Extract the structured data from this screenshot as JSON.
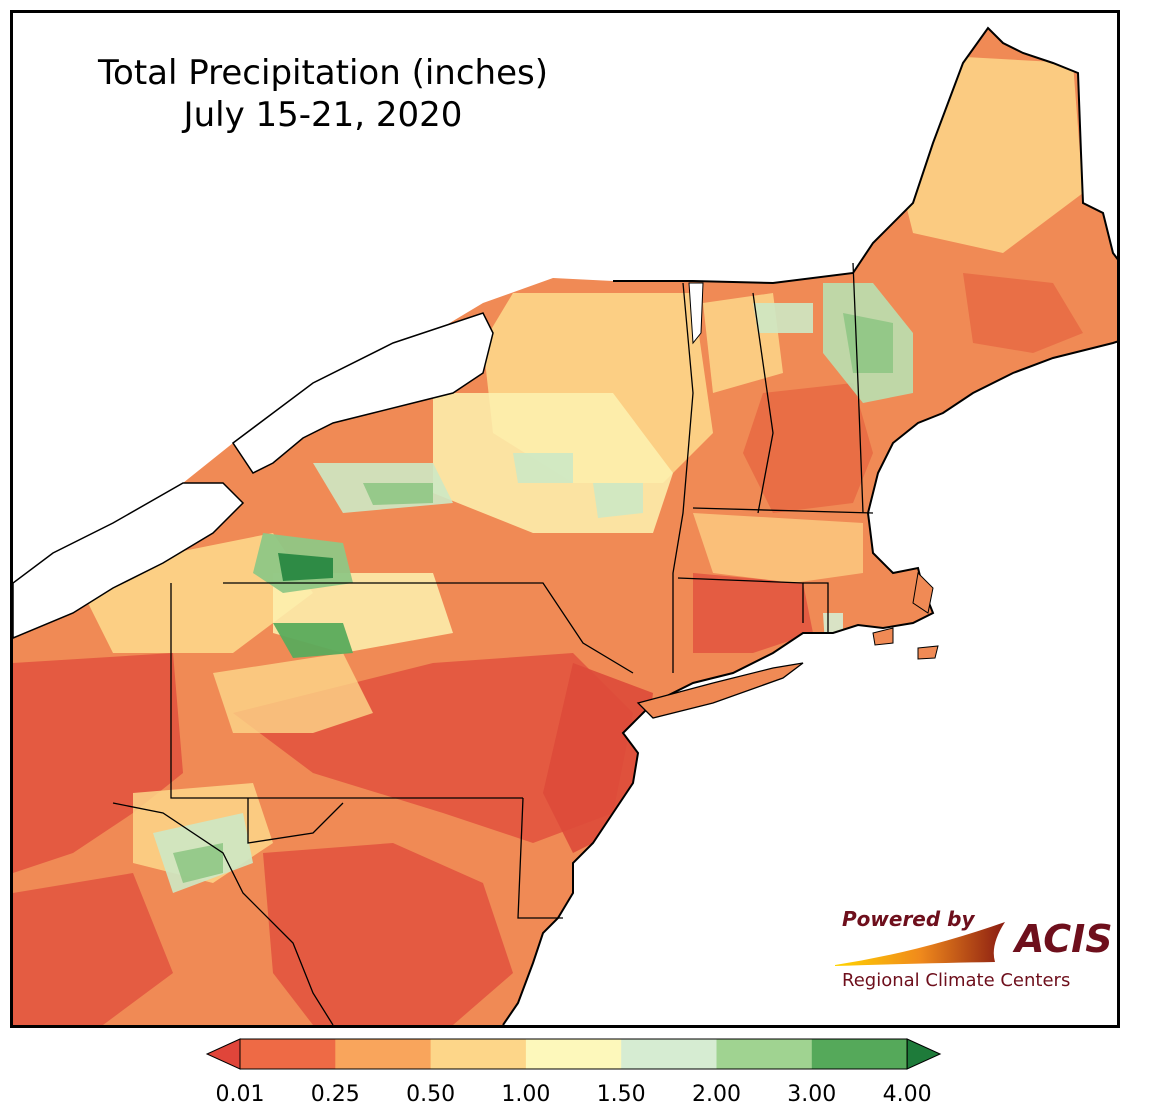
{
  "title": {
    "line1": "Total Precipitation (inches)",
    "line2": "July 15-21, 2020"
  },
  "legend": {
    "tick_labels": [
      "0.01",
      "0.25",
      "0.50",
      "1.00",
      "1.50",
      "2.00",
      "3.00",
      "4.00"
    ],
    "colors": [
      "#e0453a",
      "#ee6a45",
      "#f9a55c",
      "#fdd689",
      "#fdf8bb",
      "#d6ecd2",
      "#a0d391",
      "#55a95a",
      "#1e7b3a"
    ]
  },
  "logo": {
    "powered_by": "Powered by",
    "brand": "ACIS",
    "subtitle": "Regional Climate Centers",
    "brand_color": "#6e0f1c"
  },
  "map": {
    "land_color": "#f08a55",
    "water_color": "#ffffff",
    "border_color": "#000000"
  }
}
